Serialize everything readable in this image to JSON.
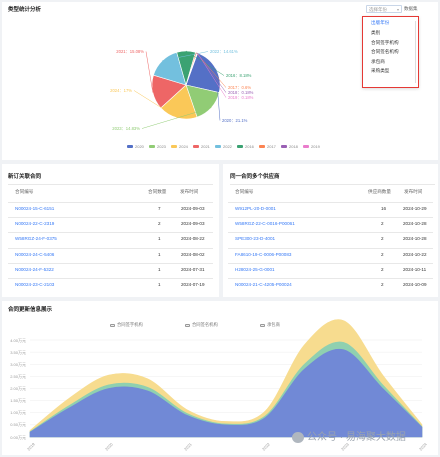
{
  "top": {
    "title": "类型统计分析",
    "select_placeholder": "选择年份",
    "search_label": "数据集",
    "dropdown": [
      "出版年份",
      "类别",
      "合同签字机构",
      "合同签名机构",
      "承包商",
      "采购类型"
    ]
  },
  "pie": {
    "labels": [
      {
        "text": "2021：15.08%",
        "color": "#ee6666"
      },
      {
        "text": "2022：14.61%",
        "color": "#73c0de"
      },
      {
        "text": "2016：8.18%",
        "color": "#3ba272"
      },
      {
        "text": "2017：0.6%",
        "color": "#fc8452"
      },
      {
        "text": "2018：0.18%",
        "color": "#9a60b4"
      },
      {
        "text": "2019：0.18%",
        "color": "#ea7ccc"
      },
      {
        "text": "2020：21.1%",
        "color": "#5470c6"
      },
      {
        "text": "2023：14.83%",
        "color": "#91cc75"
      },
      {
        "text": "2024：17%",
        "color": "#fac858"
      }
    ],
    "legend": [
      {
        "name": "2020",
        "color": "#5470c6"
      },
      {
        "name": "2023",
        "color": "#91cc75"
      },
      {
        "name": "2024",
        "color": "#fac858"
      },
      {
        "name": "2021",
        "color": "#ee6666"
      },
      {
        "name": "2022",
        "color": "#73c0de"
      },
      {
        "name": "2016",
        "color": "#3ba272"
      },
      {
        "name": "2017",
        "color": "#fc8452"
      },
      {
        "name": "2018",
        "color": "#9a60b4"
      },
      {
        "name": "2019",
        "color": "#ea7ccc"
      }
    ]
  },
  "chart_data": [
    {
      "type": "pie",
      "categories": [
        "2020",
        "2023",
        "2024",
        "2021",
        "2022",
        "2016",
        "2017",
        "2018",
        "2019"
      ],
      "values": [
        21.1,
        14.83,
        17,
        15.08,
        14.61,
        8.18,
        0.6,
        0.18,
        0.18
      ],
      "legend": "bottom"
    },
    {
      "type": "area",
      "series": [
        {
          "values": [
            0.2,
            1.2,
            2.0,
            1.9,
            0.9,
            0.5,
            0.8,
            2.8,
            3.6,
            2.0,
            0.4
          ]
        },
        {
          "values": [
            0.02,
            0.1,
            0.15,
            0.15,
            0.08,
            0.04,
            0.07,
            0.2,
            0.3,
            0.15,
            0.03
          ]
        },
        {
          "values": [
            0.05,
            0.3,
            0.4,
            0.35,
            0.15,
            0.1,
            0.2,
            0.8,
            0.9,
            0.4,
            0.08
          ]
        }
      ],
      "x": [
        "2019",
        "",
        "2020",
        "",
        "2021",
        "",
        "2022",
        "",
        "2023",
        "",
        "2024"
      ],
      "yticks": [
        "4.00万元",
        "3.50万元",
        "3.00万元",
        "2.50万元",
        "2.00万元",
        "1.50万元",
        "1.00万元",
        "0.50万元",
        "0.00万元"
      ],
      "ylim": [
        0,
        4
      ],
      "legend": "top-center"
    }
  ],
  "left_table": {
    "title": "新订关联合同",
    "headers": [
      "合同编号",
      "合同数量",
      "发布时间"
    ],
    "rows": [
      [
        "N00024-15-C-6151",
        "7",
        "2024-09-03"
      ],
      [
        "N00024-22-C-2319",
        "2",
        "2024-09-03"
      ],
      [
        "W58RGZ-24-F-0375",
        "1",
        "2024-08-22"
      ],
      [
        "N00024-24-C-5406",
        "1",
        "2024-08-02"
      ],
      [
        "N00024-24-F-5322",
        "1",
        "2024-07-31"
      ],
      [
        "N00024-23-C-2103",
        "1",
        "2024-07-19"
      ]
    ]
  },
  "right_table": {
    "title": "同一合同多个供应商",
    "headers": [
      "合同编号",
      "供应商数量",
      "发布时间"
    ],
    "rows": [
      [
        "W912PL-20-D-0001",
        "16",
        "2024-10-29"
      ],
      [
        "W58RGZ-22-C-0016-P00061",
        "2",
        "2024-10-28"
      ],
      [
        "SPE300-23-D-4001",
        "2",
        "2024-10-28"
      ],
      [
        "FA8610-19-C-0006-P00083",
        "2",
        "2024-10-22"
      ],
      [
        "H28024-25-G-0001",
        "2",
        "2024-10-11"
      ],
      [
        "N00024-21-C-4205-P00024",
        "2",
        "2024-10-09"
      ]
    ]
  },
  "area": {
    "title": "合同更新信息展示",
    "legend": [
      "合同签字机构",
      "合同签名机构",
      "承包商"
    ]
  },
  "watermark": "公众号 · 易海聚大数据"
}
